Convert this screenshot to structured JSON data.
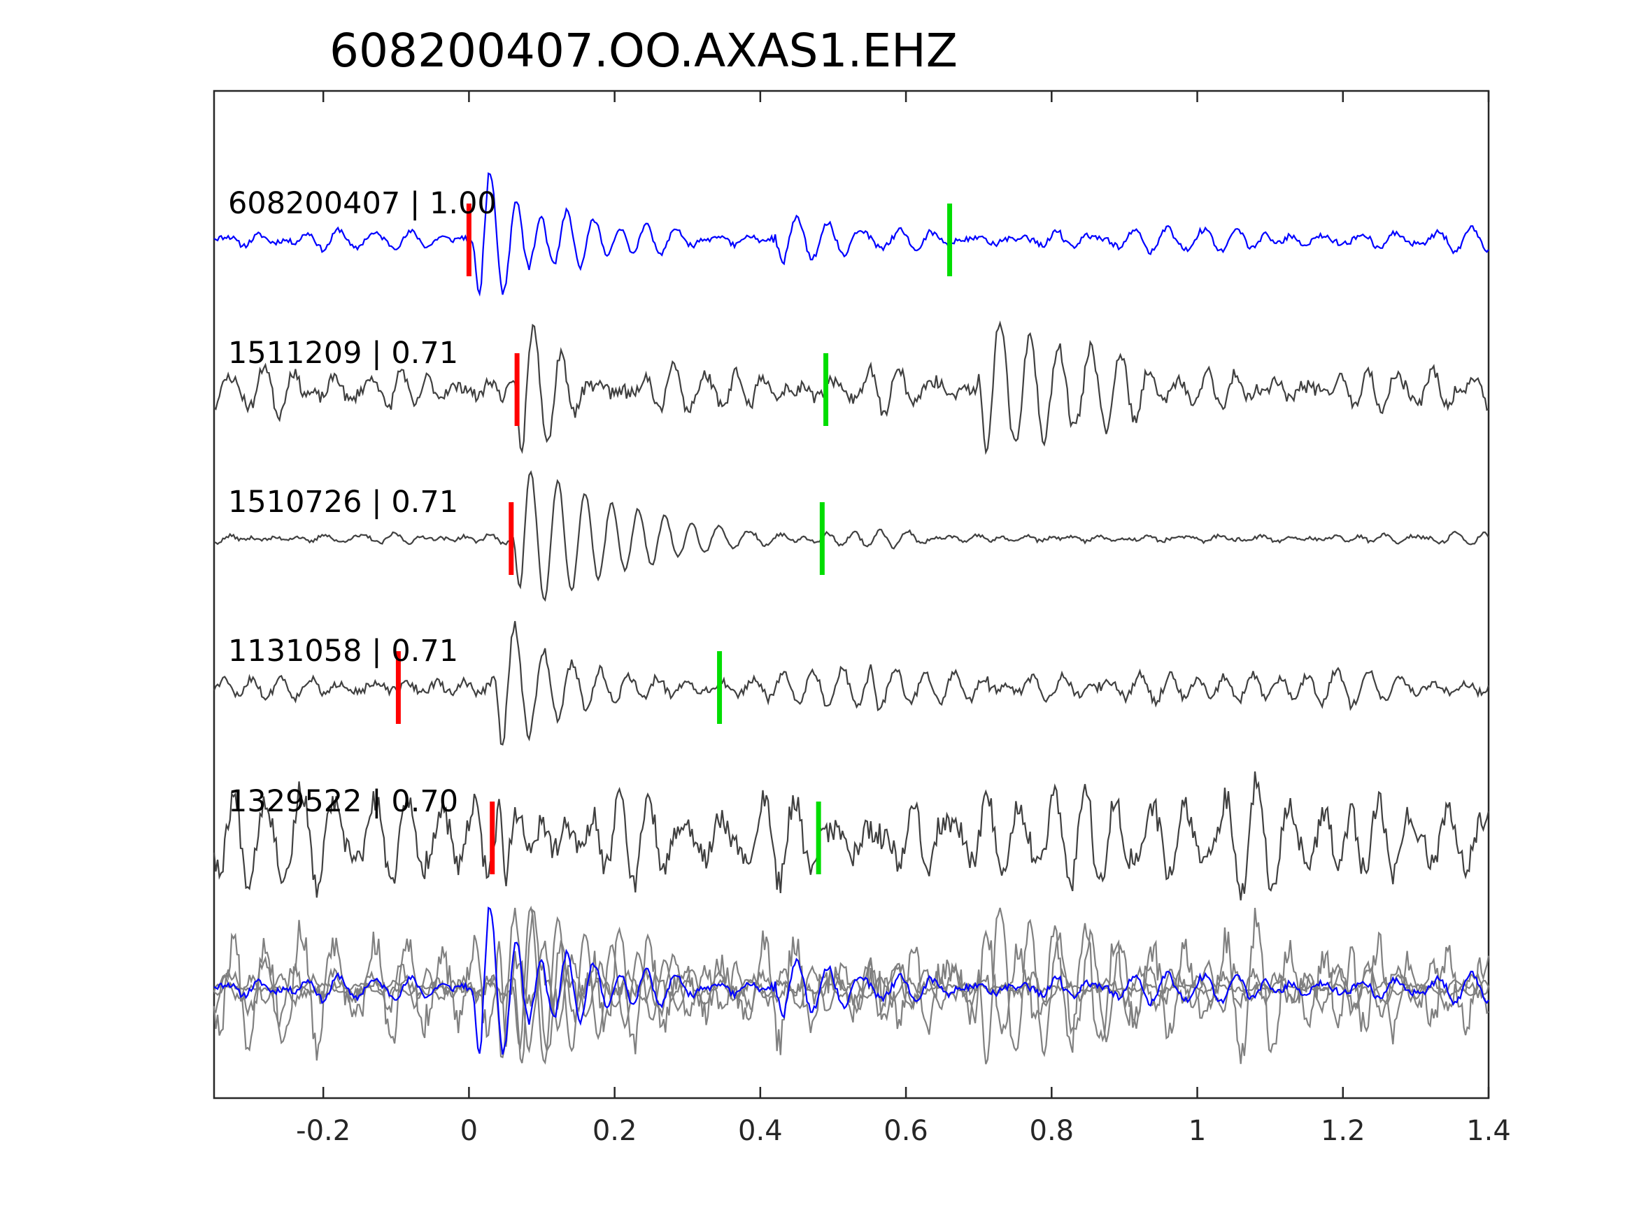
{
  "chart_data": {
    "type": "line",
    "title": "608200407.OO.AXAS1.EHZ",
    "xlabel": "",
    "ylabel": "",
    "xlim": [
      -0.35,
      1.4
    ],
    "x_ticks": [
      -0.2,
      0,
      0.2,
      0.4,
      0.6,
      0.8,
      1,
      1.2,
      1.4
    ],
    "x_tick_labels": [
      "-0.2",
      "0",
      "0.2",
      "0.4",
      "0.6",
      "0.8",
      "1",
      "1.2",
      "1.4"
    ],
    "grid": false,
    "legend": "none",
    "colors": {
      "primary_trace": "#0000ff",
      "match_trace": "#404040",
      "overlay_trace": "#808080",
      "p_pick": "#ff0000",
      "s_pick": "#00dd00"
    },
    "series": [
      {
        "label": "608200407 | 1.00",
        "event_id": "608200407",
        "correlation": 1.0,
        "color": "blue",
        "p_pick": 0.0,
        "s_pick": 0.66,
        "waveform": {
          "noise_amp": 0.13,
          "coda_amp": 0.16,
          "packets": [
            {
              "t0": 0.005,
              "amp": 1.0,
              "decay": 0.09,
              "freq": 28
            },
            {
              "t0": 0.42,
              "amp": 0.35,
              "decay": 0.05,
              "freq": 22
            }
          ],
          "seed": 11
        }
      },
      {
        "label": "1511209 | 0.71",
        "event_id": "1511209",
        "correlation": 0.71,
        "color": "dark-gray",
        "p_pick": 0.066,
        "s_pick": 0.49,
        "waveform": {
          "noise_amp": 0.22,
          "coda_amp": 0.3,
          "packets": [
            {
              "t0": 0.062,
              "amp": 1.0,
              "decay": 0.05,
              "freq": 26
            },
            {
              "t0": 0.7,
              "amp": 1.0,
              "decay": 0.12,
              "freq": 24
            }
          ],
          "seed": 23
        }
      },
      {
        "label": "1510726 | 0.71",
        "event_id": "1510726",
        "correlation": 0.71,
        "color": "dark-gray",
        "p_pick": 0.058,
        "s_pick": 0.485,
        "waveform": {
          "noise_amp": 0.08,
          "coda_amp": 0.12,
          "packets": [
            {
              "t0": 0.06,
              "amp": 1.0,
              "decay": 0.14,
              "freq": 27
            }
          ],
          "seed": 37
        }
      },
      {
        "label": "1131058 | 0.71",
        "event_id": "1131058",
        "correlation": 0.71,
        "color": "dark-gray",
        "p_pick": -0.097,
        "s_pick": 0.344,
        "waveform": {
          "noise_amp": 0.18,
          "coda_amp": 0.25,
          "packets": [
            {
              "t0": 0.035,
              "amp": 1.0,
              "decay": 0.1,
              "freq": 25
            },
            {
              "t0": 0.55,
              "amp": 0.45,
              "decay": 0.08,
              "freq": 22
            }
          ],
          "seed": 51
        }
      },
      {
        "label": "1329522 | 0.70",
        "event_id": "1329522",
        "correlation": 0.7,
        "color": "dark-gray",
        "p_pick": 0.032,
        "s_pick": 0.48,
        "waveform": {
          "noise_amp": 0.45,
          "coda_amp": 0.5,
          "packets": [
            {
              "t0": 0.04,
              "amp": 1.0,
              "decay": 0.05,
              "freq": 27
            }
          ],
          "seed": 67
        }
      }
    ],
    "overlay": {
      "description_hidden": true,
      "includes": [
        "608200407",
        "1511209",
        "1510726",
        "1131058",
        "1329522"
      ],
      "primary_color": "blue",
      "other_color": "gray"
    }
  }
}
